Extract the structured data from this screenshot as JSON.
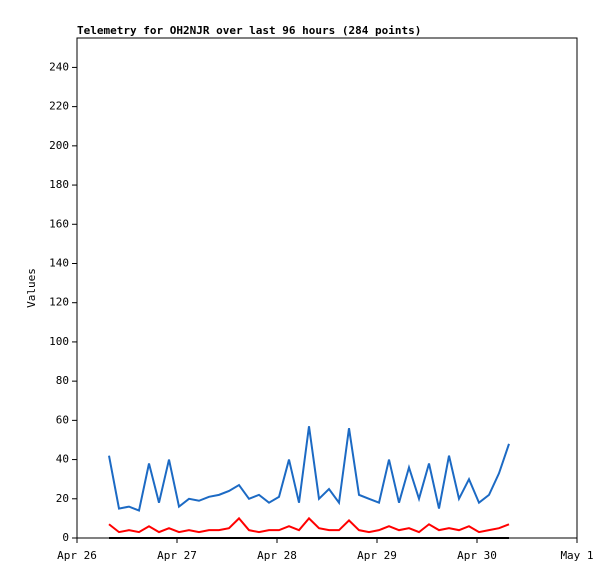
{
  "chart_data": {
    "type": "line",
    "title": "Telemetry for OH2NJR over last 96 hours (284 points)",
    "y_label": "Values",
    "x": [
      0.32,
      0.42,
      0.52,
      0.62,
      0.72,
      0.82,
      0.92,
      1.02,
      1.12,
      1.22,
      1.32,
      1.42,
      1.52,
      1.62,
      1.72,
      1.82,
      1.92,
      2.02,
      2.12,
      2.22,
      2.32,
      2.42,
      2.52,
      2.62,
      2.72,
      2.82,
      2.92,
      3.02,
      3.12,
      3.22,
      3.32,
      3.42,
      3.52,
      3.62,
      3.72,
      3.82,
      3.92,
      4.02,
      4.12,
      4.22,
      4.32
    ],
    "series": [
      {
        "color": "#1c6ac4",
        "values": [
          42,
          15,
          16,
          14,
          38,
          18,
          40,
          16,
          20,
          19,
          21,
          22,
          24,
          27,
          20,
          22,
          18,
          21,
          40,
          18,
          57,
          20,
          25,
          18,
          56,
          22,
          20,
          18,
          40,
          18,
          36,
          20,
          38,
          15,
          42,
          20,
          30,
          18,
          22,
          33,
          48
        ]
      },
      {
        "color": "#ff0000",
        "values": [
          7,
          3,
          4,
          3,
          6,
          3,
          5,
          3,
          4,
          3,
          4,
          4,
          5,
          10,
          4,
          3,
          4,
          4,
          6,
          4,
          10,
          5,
          4,
          4,
          9,
          4,
          3,
          4,
          6,
          4,
          5,
          3,
          7,
          4,
          5,
          4,
          6,
          3,
          4,
          5,
          7
        ]
      },
      {
        "color": "#000000",
        "values": [
          0,
          0,
          0,
          0,
          0,
          0,
          0,
          0,
          0,
          0,
          0,
          0,
          0,
          0,
          0,
          0,
          0,
          0,
          0,
          0,
          0,
          0,
          0,
          0,
          0,
          0,
          0,
          0,
          0,
          0,
          0,
          0,
          0,
          0,
          0,
          0,
          0,
          0,
          0,
          0,
          0
        ]
      }
    ],
    "xlim": [
      0,
      5
    ],
    "xticks": [
      {
        "value": 0,
        "label": "Apr 26"
      },
      {
        "value": 1,
        "label": "Apr 27"
      },
      {
        "value": 2,
        "label": "Apr 28"
      },
      {
        "value": 3,
        "label": "Apr 29"
      },
      {
        "value": 4,
        "label": "Apr 30"
      },
      {
        "value": 5,
        "label": "May 1"
      }
    ],
    "ylim": [
      0,
      255
    ],
    "yticks": [
      0,
      20,
      40,
      60,
      80,
      100,
      120,
      140,
      160,
      180,
      200,
      220,
      240
    ]
  }
}
